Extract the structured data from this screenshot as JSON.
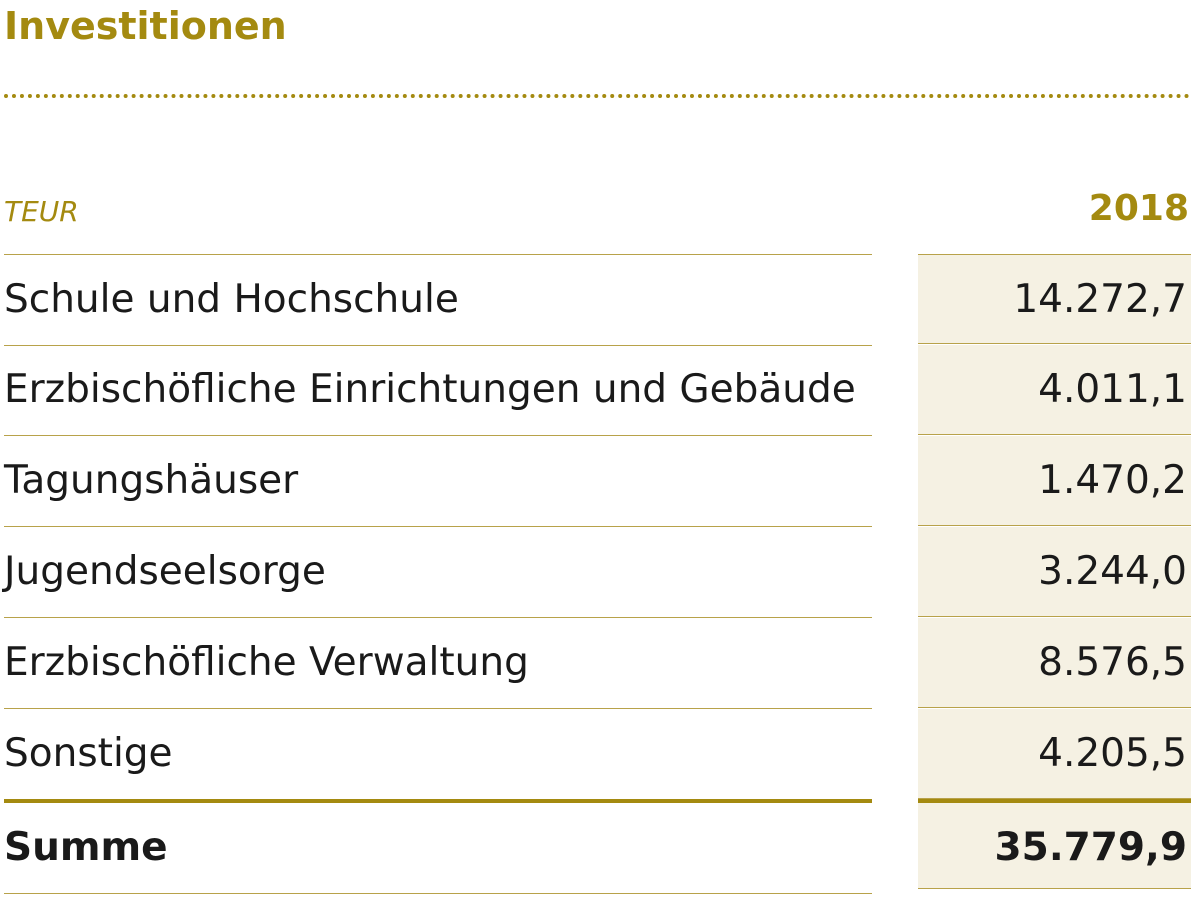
{
  "title": "Investitionen",
  "unit_label": "TEUR",
  "year": "2018",
  "rows": [
    {
      "label": "Schule und Hochschule",
      "value": "14.272,7"
    },
    {
      "label": "Erzbischöfliche Einrichtungen und Gebäude",
      "value": "4.011,1"
    },
    {
      "label": "Tagungshäuser",
      "value": "1.470,2"
    },
    {
      "label": "Jugendseelsorge",
      "value": "3.244,0"
    },
    {
      "label": "Erzbischöfliche Verwaltung",
      "value": "8.576,5"
    },
    {
      "label": "Sonstige",
      "value": "4.205,5"
    }
  ],
  "total": {
    "label": "Summe",
    "value": "35.779,9"
  },
  "colors": {
    "accent": "#a48a10",
    "value_column_bg": "#f5f1e3",
    "rule": "#b8a24a"
  }
}
